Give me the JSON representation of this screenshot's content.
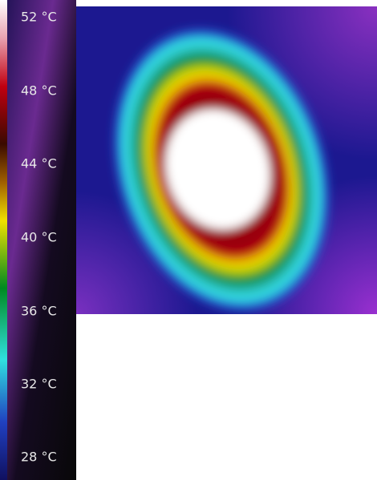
{
  "colorbar": {
    "labels": [
      "52 °C",
      "48 °C",
      "44 °C",
      "40 °C",
      "36 °C",
      "32 °C",
      "28 °C"
    ]
  }
}
